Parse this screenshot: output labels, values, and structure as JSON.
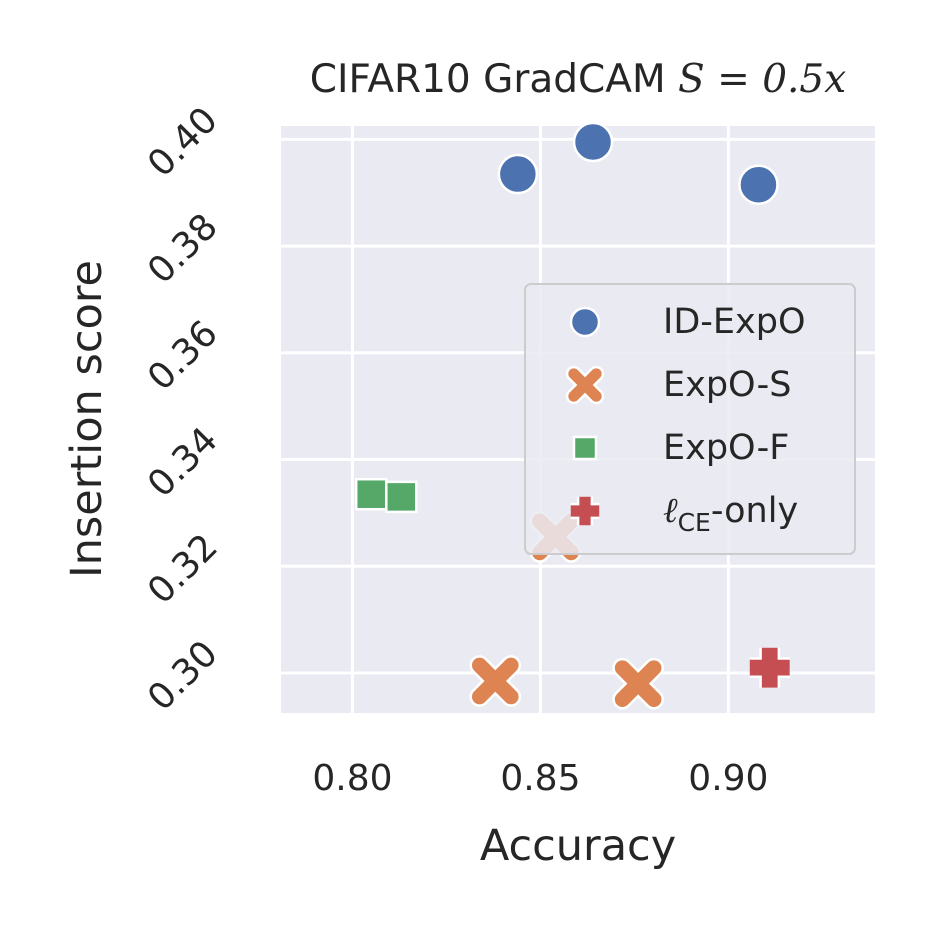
{
  "chart_data": {
    "type": "scatter",
    "title_prefix": "CIFAR10 GradCAM ",
    "title_math": "S = 0.5x",
    "xlabel": "Accuracy",
    "ylabel": "Insertion score",
    "xlim": [
      0.781,
      0.939
    ],
    "ylim": [
      0.2925,
      0.4025
    ],
    "x_ticks": [
      0.8,
      0.85,
      0.9
    ],
    "x_tick_labels": [
      "0.80",
      "0.85",
      "0.90"
    ],
    "y_ticks": [
      0.3,
      0.32,
      0.34,
      0.36,
      0.38,
      0.4
    ],
    "y_tick_labels": [
      "0.30",
      "0.32",
      "0.34",
      "0.36",
      "0.38",
      "0.40"
    ],
    "y_tick_rotation_deg": 45,
    "grid": true,
    "background": "#eaeaf2",
    "legend_position": "center-right",
    "series": [
      {
        "name": "ID-ExpO",
        "marker": "circle",
        "color": "#4c72b0",
        "points": [
          {
            "x": 0.844,
            "y": 0.3935
          },
          {
            "x": 0.864,
            "y": 0.3995
          },
          {
            "x": 0.908,
            "y": 0.3915
          }
        ]
      },
      {
        "name": "ExpO-S",
        "marker": "x",
        "color": "#dd8452",
        "points": [
          {
            "x": 0.838,
            "y": 0.2985
          },
          {
            "x": 0.876,
            "y": 0.298
          },
          {
            "x": 0.854,
            "y": 0.3255
          }
        ]
      },
      {
        "name": "ExpO-F",
        "marker": "square",
        "color": "#55a868",
        "points": [
          {
            "x": 0.805,
            "y": 0.3335
          },
          {
            "x": 0.813,
            "y": 0.333
          }
        ]
      },
      {
        "name": "ℓCE-only",
        "name_main": "ℓ",
        "name_sub": "CE",
        "name_tail": "-only",
        "marker": "plus",
        "color": "#c44e52",
        "points": [
          {
            "x": 0.911,
            "y": 0.301
          }
        ]
      }
    ]
  }
}
